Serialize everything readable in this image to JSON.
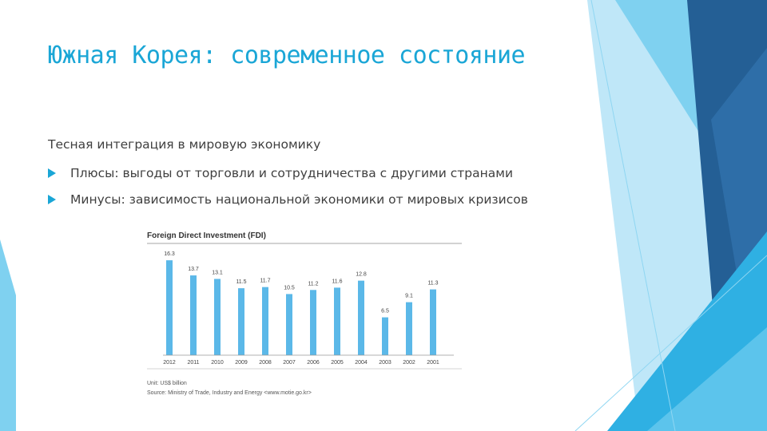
{
  "slide": {
    "title": "Южная Корея: современное состояние",
    "subtitle": "Тесная интеграция в мировую экономику",
    "bullets": [
      {
        "label": "Плюсы: выгоды от торговли и сотрудничества с другими странами"
      },
      {
        "label": "Минусы: зависимость национальной экономики от мировых кризисов"
      }
    ]
  },
  "chart_data": {
    "type": "bar",
    "title": "Foreign Direct Investment (FDI)",
    "categories": [
      "2012",
      "2011",
      "2010",
      "2009",
      "2008",
      "2007",
      "2006",
      "2005",
      "2004",
      "2003",
      "2002",
      "2001"
    ],
    "values": [
      16.3,
      13.7,
      13.1,
      11.5,
      11.7,
      10.5,
      11.2,
      11.6,
      12.8,
      6.5,
      9.1,
      11.3
    ],
    "unit_note": "Unit: US$ billion",
    "source_note": "Source: Ministry of Trade, Industry and Energy <www.motie.go.kr>",
    "ylim": [
      0,
      17
    ],
    "grid": false,
    "bar_color": "#5bb8e8"
  },
  "theme": {
    "accent": "#1aa6d6",
    "deco_light": "#7fd1f0",
    "deco_mid": "#2fb0e3",
    "deco_dark": "#2e6ea8",
    "deco_navy": "#245f95"
  }
}
